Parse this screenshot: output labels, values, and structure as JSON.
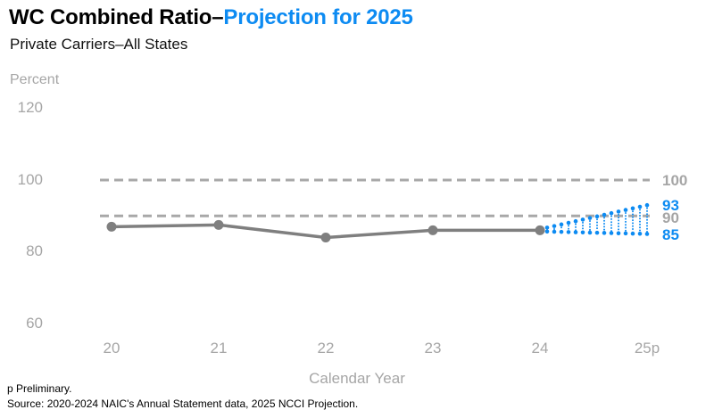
{
  "title": {
    "main": "WC Combined Ratio–",
    "accent": "Projection for 2025"
  },
  "subtitle": "Private Carriers–All States",
  "footer": {
    "note": "p Preliminary.",
    "source": "Source: 2020-2024 NAIC's Annual Statement data, 2025 NCCI Projection."
  },
  "chart_data": {
    "type": "line",
    "title": "WC Combined Ratio–Projection for 2025",
    "subtitle": "Private Carriers–All States",
    "xlabel": "Calendar Year",
    "ylabel": "Percent",
    "categories": [
      "20",
      "21",
      "22",
      "23",
      "24",
      "25p"
    ],
    "series": [
      {
        "name": "Combined Ratio",
        "values": [
          87,
          87.5,
          84,
          86,
          86
        ]
      }
    ],
    "projection": {
      "category": "25p",
      "from_value": 86,
      "upper": 93,
      "lower": 85,
      "style": "dotted-fan"
    },
    "reference_lines": [
      100,
      90
    ],
    "ytick_labels": [
      "120",
      "100",
      "80",
      "60"
    ],
    "yticks": [
      120,
      100,
      80,
      60
    ],
    "ylim": [
      55,
      125
    ],
    "grid": "horizontal-dashed-at-100-and-90-only",
    "legend": "none",
    "right_labels": [
      {
        "text": "100",
        "role": "reference",
        "color": "gray"
      },
      {
        "text": "93",
        "role": "projection-upper",
        "color": "blue"
      },
      {
        "text": "90",
        "role": "reference",
        "color": "gray"
      },
      {
        "text": "85",
        "role": "projection-lower",
        "color": "blue"
      }
    ],
    "colors": {
      "accent": "#0d8bf2",
      "line": "#7f7f7f",
      "dashed": "#a8a8a8",
      "tick": "#a6a6a6",
      "title_text": "#000000"
    }
  }
}
